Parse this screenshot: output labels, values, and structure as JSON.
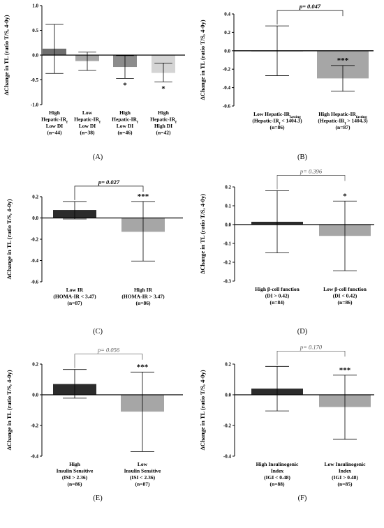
{
  "chart_data": [
    {
      "type": "bar",
      "panel_label": "(A)",
      "ylabel": "ΔChange in TL (ratio T/S, 4-0y)",
      "ylim": [
        -1.0,
        1.0
      ],
      "yticks": [
        "-1.0",
        "-0.5",
        "0.0",
        "0.5",
        "1.0"
      ],
      "categories": [
        [
          "High",
          "Hepatic-IR",
          "Low DI",
          "(n=44)"
        ],
        [
          "Low",
          "Hepatic-IR",
          "Low DI",
          "(n=38)"
        ],
        [
          "High",
          "Hepatic-IR",
          "Low DI",
          "(n=46)"
        ],
        [
          "High",
          "Hepatic-IR",
          "High DI",
          "(n=42)"
        ]
      ],
      "values": [
        0.13,
        -0.12,
        -0.24,
        -0.36
      ],
      "error_upper": [
        0.62,
        0.06,
        -0.01,
        -0.16
      ],
      "error_lower": [
        -0.37,
        -0.31,
        -0.47,
        -0.54
      ],
      "annotations": [
        "",
        "",
        "*",
        "*"
      ],
      "colors": [
        "#6e6e6e",
        "#a6a6a6",
        "#8c8c8c",
        "#d4d4d4"
      ],
      "bracket": null
    },
    {
      "type": "bar",
      "panel_label": "(B)",
      "ylabel": "ΔChange in TL (ratio T/S, 4-0y)",
      "ylim": [
        -0.6,
        0.4
      ],
      "yticks": [
        "-0.6",
        "-0.4",
        "-0.2",
        "0.0",
        "0.2",
        "0.4"
      ],
      "categories": [
        [
          "Low Hepatic-IR",
          "(Hepatic-IR < 1404.3)",
          "(n=86)"
        ],
        [
          "High Hepatic-IR",
          "(Hepatic-IR > 1404.3)",
          "(n=87)"
        ]
      ],
      "subscript_terms": [
        "fasting",
        "f"
      ],
      "values": [
        -0.005,
        -0.3
      ],
      "error_upper": [
        0.27,
        -0.16
      ],
      "error_lower": [
        -0.27,
        -0.44
      ],
      "annotations": [
        "",
        "***"
      ],
      "colors": [
        "#2b2b2b",
        "#a6a6a6"
      ],
      "bracket": {
        "label": "p= 0.047",
        "bold": true
      }
    },
    {
      "type": "bar",
      "panel_label": "(C)",
      "ylabel": "ΔChange in TL (ratio T/S, 4-0y)",
      "ylim": [
        -0.6,
        0.2
      ],
      "yticks": [
        "-0.6",
        "-0.4",
        "-0.2",
        "0.0",
        "0.2"
      ],
      "categories": [
        [
          "Low IR",
          "(HOMA-IR < 3.47)",
          "(n=87)"
        ],
        [
          "High IR",
          "(HOMA-IR > 3.47)",
          "(n=86)"
        ]
      ],
      "values": [
        0.075,
        -0.13
      ],
      "error_upper": [
        0.155,
        0.155
      ],
      "error_lower": [
        -0.01,
        -0.405
      ],
      "annotations": [
        "",
        "***"
      ],
      "colors": [
        "#2b2b2b",
        "#a6a6a6"
      ],
      "bracket": {
        "label": "p= 0.027",
        "bold": true
      }
    },
    {
      "type": "bar",
      "panel_label": "(D)",
      "ylabel": "ΔChange in TL (ratio T/S, 4-0y)",
      "ylim": [
        -0.3,
        0.2
      ],
      "yticks": [
        "-0.3",
        "-0.2",
        "-0.1",
        "0.0",
        "0.1",
        "0.2"
      ],
      "categories": [
        [
          "High β-cell function",
          "(DI > 0.42)",
          "(n=84)"
        ],
        [
          "Low β-cell function",
          "(DI < 0.42)",
          "(n=86)"
        ]
      ],
      "values": [
        0.015,
        -0.06
      ],
      "error_upper": [
        0.18,
        0.125
      ],
      "error_lower": [
        -0.15,
        -0.245
      ],
      "annotations": [
        "",
        "*"
      ],
      "colors": [
        "#2b2b2b",
        "#a6a6a6"
      ],
      "bracket": {
        "label": "p= 0.396",
        "bold": false
      }
    },
    {
      "type": "bar",
      "panel_label": "(E)",
      "ylabel": "ΔChange in TL (ratio T/S, 4-0y)",
      "ylim": [
        -0.4,
        0.2
      ],
      "yticks": [
        "-0.4",
        "-0.2",
        "0.0",
        "0.2"
      ],
      "categories": [
        [
          "High",
          "Insulin Sensitive",
          "(ISI > 2.36)",
          "(n=86)"
        ],
        [
          "Low",
          "Insulin Sensitive",
          "(ISI < 2.36)",
          "(n=87)"
        ]
      ],
      "values": [
        0.07,
        -0.11
      ],
      "error_upper": [
        0.165,
        0.148
      ],
      "error_lower": [
        -0.022,
        -0.37
      ],
      "annotations": [
        "",
        "***"
      ],
      "colors": [
        "#2b2b2b",
        "#a6a6a6"
      ],
      "bracket": {
        "label": "p= 0.056",
        "bold": false
      }
    },
    {
      "type": "bar",
      "panel_label": "(F)",
      "ylabel": "ΔChange in TL (ratio T/S, 4-0y)",
      "ylim": [
        -0.4,
        0.2
      ],
      "yticks": [
        "-0.4",
        "-0.2",
        "0.0",
        "0.2"
      ],
      "categories": [
        [
          "High Insulinogenic",
          "Index",
          "(IGI < 0.48)",
          "(n=88)"
        ],
        [
          "Low Insulinogenic",
          "Index",
          "(IGI > 0.48)",
          "(n=85)"
        ]
      ],
      "values": [
        0.04,
        -0.08
      ],
      "error_upper": [
        0.185,
        0.128
      ],
      "error_lower": [
        -0.105,
        -0.29
      ],
      "annotations": [
        "",
        "***"
      ],
      "colors": [
        "#2b2b2b",
        "#a6a6a6"
      ],
      "bracket": {
        "label": "p= 0.170",
        "bold": false
      }
    }
  ]
}
